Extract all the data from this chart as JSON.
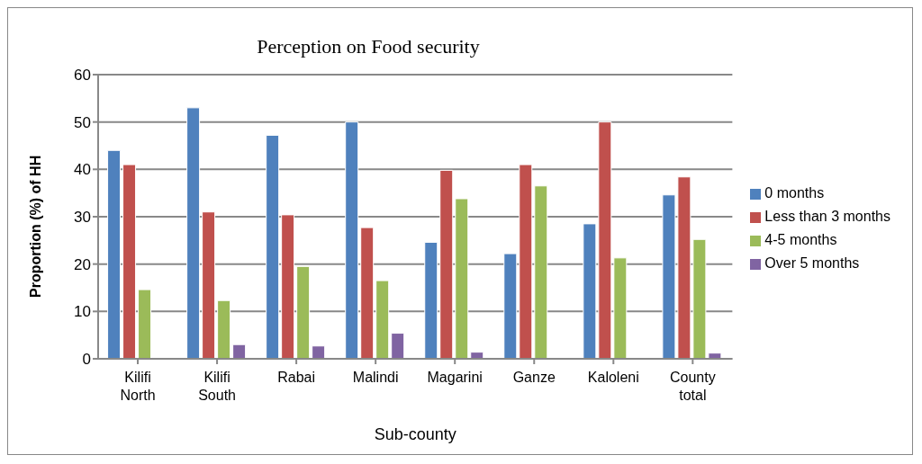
{
  "chart_data": {
    "type": "bar",
    "title": "Perception on Food security",
    "xlabel": "Sub-county",
    "ylabel": "Proportion  (%) of HH",
    "categories": [
      "Kilifi North",
      "Kilifi South",
      "Rabai",
      "Malindi",
      "Magarini",
      "Ganze",
      "Kaloleni",
      "County total"
    ],
    "series": [
      {
        "name": "0 months",
        "color": "#4f81bd",
        "values": [
          44,
          53,
          47.2,
          50,
          24.6,
          22.2,
          28.5,
          34.6
        ]
      },
      {
        "name": "Less than 3 months",
        "color": "#c0504d",
        "values": [
          41,
          31,
          30.4,
          27.7,
          39.8,
          41,
          50,
          38.4
        ]
      },
      {
        "name": "4-5 months",
        "color": "#9bbb59",
        "values": [
          14.6,
          12.3,
          19.5,
          16.5,
          33.8,
          36.5,
          21.3,
          25.2
        ]
      },
      {
        "name": "Over 5 months",
        "color": "#8064a2",
        "values": [
          null,
          3,
          2.7,
          5.4,
          1.4,
          null,
          null,
          1.2
        ]
      }
    ],
    "ylim": [
      0,
      60
    ],
    "yticks": [
      0,
      10,
      20,
      30,
      40,
      50,
      60
    ],
    "grid": "y",
    "legend": "right"
  }
}
